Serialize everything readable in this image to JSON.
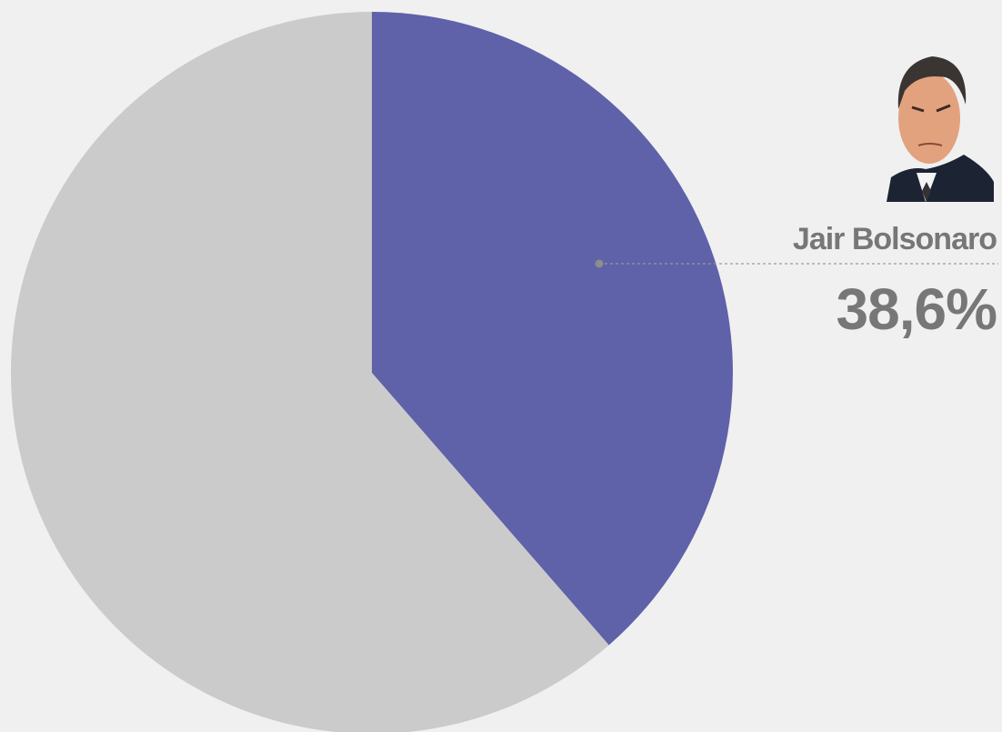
{
  "chart_data": {
    "type": "pie",
    "categories": [
      "Jair Bolsonaro",
      null
    ],
    "values": [
      38.6,
      61.4
    ],
    "value_labels": [
      "38,6%",
      null
    ],
    "colors": [
      "#5f61a9",
      "#cbcbcb"
    ]
  }
}
